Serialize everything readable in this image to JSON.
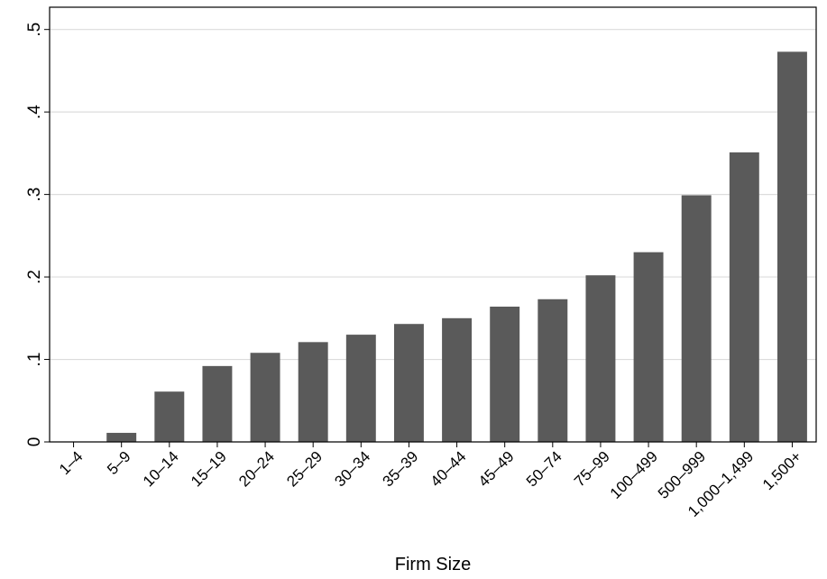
{
  "chart_data": {
    "type": "bar",
    "x_label": "Firm Size",
    "categories": [
      "1–4",
      "5–9",
      "10–14",
      "15–19",
      "20–24",
      "25–29",
      "30–34",
      "35–39",
      "40–44",
      "45–49",
      "50–74",
      "75–99",
      "100–499",
      "500–999",
      "1,000–1,499",
      "1,500+"
    ],
    "values": [
      0,
      0.011,
      0.061,
      0.092,
      0.108,
      0.121,
      0.13,
      0.143,
      0.15,
      0.164,
      0.173,
      0.202,
      0.23,
      0.299,
      0.351,
      0.473
    ],
    "color": "#5a5a5a",
    "ylim": [
      0,
      0.527
    ],
    "yticks": [
      0,
      {
        "value": 0.1,
        "label": ".1"
      },
      {
        "value": 0.2,
        "label": ".2"
      },
      {
        "value": 0.3,
        "label": ".3"
      },
      {
        "value": 0.4,
        "label": ".4"
      },
      {
        "value": 0.5,
        "label": ".5"
      }
    ],
    "grid": true
  }
}
